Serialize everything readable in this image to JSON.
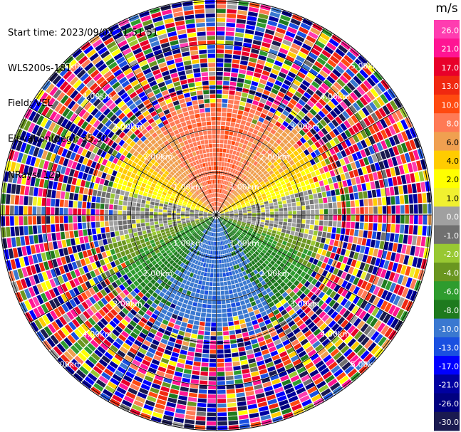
{
  "info": {
    "start_time": "Start time: 2023/09/02 21:51:51",
    "instrument": "WLS200s-181",
    "field": "Field: VEL",
    "elevation": "Elevation(deg): 35.30",
    "nrays": "NRays: 120"
  },
  "chart_data": {
    "type": "heatmap",
    "plot_kind": "polar PPI scan (Doppler lidar radial velocity)",
    "rays": 120,
    "range_rings": [
      "1.00km",
      "2.00km",
      "3.00km",
      "4.00km",
      "5.00km"
    ],
    "range_rings_km": [
      1,
      2,
      3,
      4,
      5
    ],
    "max_range_km": 5.0,
    "spokes_deg": [
      0,
      30,
      60,
      90,
      120,
      150,
      180,
      210,
      240,
      270,
      300,
      330
    ],
    "colorbar": {
      "title": "m/s",
      "tick_labels": [
        "26.0",
        "21.0",
        "17.0",
        "13.0",
        "10.0",
        "8.0",
        "6.0",
        "4.0",
        "2.0",
        "1.0",
        "0.0",
        "-1.0",
        "-2.0",
        "-4.0",
        "-6.0",
        "-8.0",
        "-10.0",
        "-13.0",
        "-17.0",
        "-21.0",
        "-26.0",
        "-30.0"
      ],
      "bands": [
        "#ff3cb0",
        "#ff1493",
        "#e8002a",
        "#f02810",
        "#ff4a10",
        "#ff7a55",
        "#f0a050",
        "#ffcc00",
        "#ffff00",
        "#f0f030",
        "#a0a0a0",
        "#707070",
        "#98c832",
        "#6a9620",
        "#2e9c2e",
        "#1e7a1e",
        "#3a78d0",
        "#1a50e0",
        "#0000ff",
        "#0000a0",
        "#000080",
        "#1a1a50"
      ]
    },
    "field_pattern": {
      "north": "positive (2 to 10 m/s, orange/yellow)",
      "south": "negative (-8 to -10 m/s, blue)",
      "east_west": "near zero (green/gray)",
      "beyond_approx_km": 2.6,
      "beyond_note": "noisy random values at far range"
    }
  }
}
